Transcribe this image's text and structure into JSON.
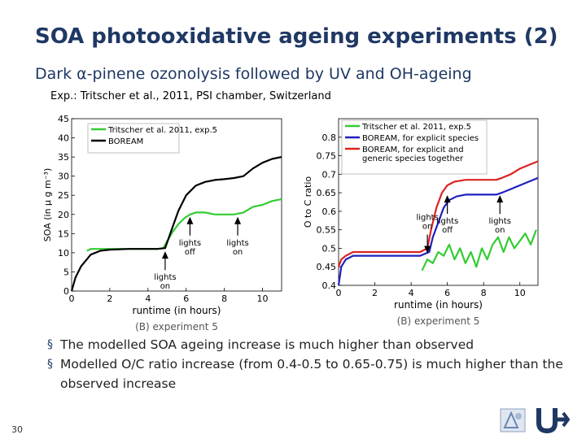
{
  "slide": {
    "title": "SOA photooxidative ageing experiments (2)",
    "subtitle": "Dark α-pinene ozonolysis followed by UV and OH-ageing",
    "reference": "Exp.: Tritscher et al., 2011, PSI chamber, Switzerland",
    "bullets": [
      "The modelled SOA ageing increase is much higher than observed",
      "Modelled O/C ratio increase (from 0.4-0.5 to 0.65-0.75) is much higher than the observed increase"
    ],
    "page_number": "30",
    "colors": {
      "title": "#1f3864",
      "observed": "#33cc33",
      "boream": "#000000",
      "boream_explicit": "#1f1fbf",
      "boream_generic": "#dd2222"
    },
    "logos": [
      "aeronomy-logo-icon",
      "belgian-science-policy-logo-icon"
    ]
  },
  "chart_data": [
    {
      "type": "line",
      "xlabel": "runtime (in hours)",
      "ylabel": "SOA (in µ g m⁻³)",
      "caption": "(B)  experiment 5",
      "xlim": [
        0,
        11
      ],
      "ylim": [
        0,
        45
      ],
      "xticks": [
        "0",
        "2",
        "4",
        "6",
        "8",
        "10"
      ],
      "yticks": [
        "0",
        "5",
        "10",
        "15",
        "20",
        "25",
        "30",
        "35",
        "40",
        "45"
      ],
      "legend": "top-left",
      "series": [
        {
          "name": "Tritscher et al. 2011, exp.5",
          "color": "#33cc33",
          "x": [
            0.8,
            1.0,
            1.5,
            2.0,
            2.5,
            3.0,
            3.5,
            4.0,
            4.5,
            4.8,
            5.0,
            5.3,
            5.6,
            5.9,
            6.2,
            6.5,
            7.0,
            7.5,
            8.0,
            8.5,
            9.0,
            9.5,
            10.0,
            10.5,
            11.0
          ],
          "y": [
            10.5,
            11.0,
            11.0,
            11.0,
            11.0,
            11.0,
            11.0,
            11.0,
            11.0,
            11.2,
            13.0,
            15.5,
            17.5,
            19.0,
            20.0,
            20.5,
            20.5,
            20.0,
            20.0,
            20.0,
            20.5,
            22.0,
            22.5,
            23.5,
            24.0
          ]
        },
        {
          "name": "BOREAM",
          "color": "#000000",
          "x": [
            0,
            0.2,
            0.5,
            1.0,
            1.5,
            2.0,
            3.0,
            4.0,
            4.5,
            4.9,
            5.2,
            5.6,
            6.0,
            6.5,
            7.0,
            7.5,
            8.0,
            8.5,
            9.0,
            9.5,
            10.0,
            10.5,
            11.0
          ],
          "y": [
            0,
            3.5,
            6.5,
            9.5,
            10.5,
            10.8,
            11.0,
            11.0,
            11.0,
            11.2,
            15.5,
            21.0,
            25.0,
            27.5,
            28.5,
            29.0,
            29.2,
            29.5,
            30.0,
            32.0,
            33.5,
            34.5,
            35.0
          ]
        }
      ],
      "annotations": [
        {
          "text": [
            "lights",
            "on"
          ],
          "x": 4.9,
          "y": 11.0,
          "arrow": "up"
        },
        {
          "text": [
            "lights",
            "off"
          ],
          "x": 6.2,
          "y": 20.0,
          "arrow": "up"
        },
        {
          "text": [
            "lights",
            "on"
          ],
          "x": 8.7,
          "y": 20.0,
          "arrow": "up"
        }
      ]
    },
    {
      "type": "line",
      "xlabel": "runtime (in hours)",
      "ylabel": "O to C ratio",
      "caption": "(B)  experiment 5",
      "xlim": [
        0,
        11
      ],
      "ylim": [
        0.4,
        0.85
      ],
      "xticks": [
        "0",
        "2",
        "4",
        "6",
        "8",
        "10"
      ],
      "yticks": [
        "0.4",
        "0.45",
        "0.5",
        "0.55",
        "0.6",
        "0.65",
        "0.7",
        "0.75",
        "0.8"
      ],
      "legend": "top-left",
      "series": [
        {
          "name": "Tritscher et al. 2011, exp.5",
          "color": "#33cc33",
          "x": [
            4.6,
            4.9,
            5.2,
            5.5,
            5.8,
            6.1,
            6.4,
            6.7,
            7.0,
            7.3,
            7.6,
            7.9,
            8.2,
            8.5,
            8.8,
            9.1,
            9.4,
            9.7,
            10.0,
            10.3,
            10.6,
            10.9
          ],
          "y": [
            0.44,
            0.47,
            0.46,
            0.49,
            0.48,
            0.51,
            0.47,
            0.5,
            0.46,
            0.49,
            0.45,
            0.5,
            0.47,
            0.51,
            0.53,
            0.49,
            0.53,
            0.5,
            0.52,
            0.54,
            0.51,
            0.55
          ]
        },
        {
          "name": "BOREAM, for explicit species",
          "color": "#1f1fbf",
          "x": [
            0,
            0.15,
            0.4,
            0.8,
            1.5,
            2.5,
            3.5,
            4.5,
            5.0,
            5.2,
            5.5,
            5.8,
            6.1,
            6.5,
            7.0,
            8.0,
            8.7,
            9.0,
            9.5,
            10.0,
            10.5,
            11.0
          ],
          "y": [
            0.4,
            0.45,
            0.47,
            0.48,
            0.48,
            0.48,
            0.48,
            0.48,
            0.49,
            0.53,
            0.57,
            0.61,
            0.63,
            0.64,
            0.645,
            0.645,
            0.645,
            0.65,
            0.66,
            0.67,
            0.68,
            0.69
          ]
        },
        {
          "name": "BOREAM, for explicit and generic species together",
          "color": "#dd2222",
          "x": [
            0,
            0.15,
            0.4,
            0.8,
            1.5,
            2.5,
            3.5,
            4.5,
            4.9,
            5.1,
            5.4,
            5.7,
            6.0,
            6.4,
            7.0,
            8.0,
            8.7,
            9.0,
            9.5,
            10.0,
            10.5,
            11.0
          ],
          "y": [
            0.45,
            0.47,
            0.48,
            0.49,
            0.49,
            0.49,
            0.49,
            0.49,
            0.5,
            0.55,
            0.61,
            0.65,
            0.67,
            0.68,
            0.685,
            0.685,
            0.685,
            0.69,
            0.7,
            0.715,
            0.725,
            0.735
          ]
        }
      ],
      "annotations": [
        {
          "text": [
            "lights",
            "on"
          ],
          "x": 4.9,
          "y": 0.48,
          "arrow": "down"
        },
        {
          "text": [
            "lights",
            "off"
          ],
          "x": 6.0,
          "y": 0.65,
          "arrow": "up"
        },
        {
          "text": [
            "lights",
            "on"
          ],
          "x": 8.9,
          "y": 0.65,
          "arrow": "up"
        }
      ]
    }
  ]
}
